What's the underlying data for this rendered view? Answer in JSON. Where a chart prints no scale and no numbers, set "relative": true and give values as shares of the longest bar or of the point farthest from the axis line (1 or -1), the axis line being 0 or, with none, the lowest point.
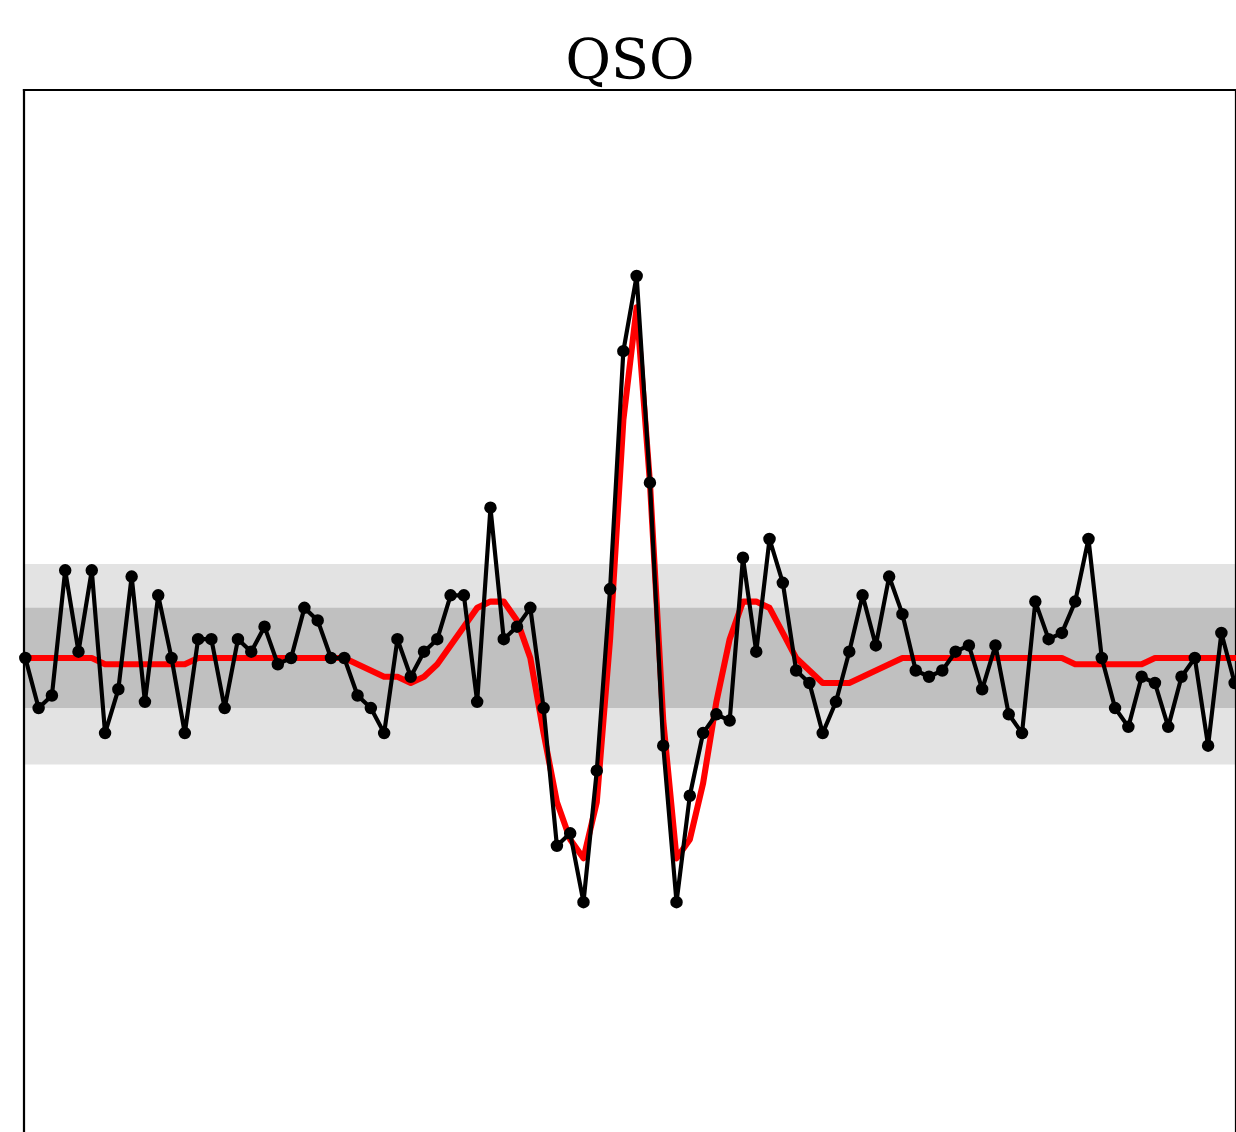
{
  "chart_data": {
    "type": "line",
    "title": "QSO",
    "relative": true,
    "categories": [
      null,
      null,
      null,
      null,
      null,
      null,
      null,
      null,
      null,
      null,
      null,
      null,
      null,
      null,
      null,
      null,
      null,
      null,
      null,
      null,
      null,
      null,
      null,
      null,
      null,
      null,
      null,
      null,
      null,
      null,
      null,
      null,
      null,
      null,
      null,
      null,
      null,
      null,
      null,
      null,
      null,
      null,
      null,
      null,
      null,
      null,
      null,
      null,
      null,
      null,
      null,
      null,
      null,
      null,
      null,
      null,
      null,
      null,
      null,
      null,
      null,
      null,
      null,
      null,
      null,
      null,
      null,
      null,
      null,
      null,
      null,
      null,
      null,
      null,
      null,
      null,
      null,
      null,
      null,
      null,
      null,
      null,
      null,
      null,
      null,
      null,
      null,
      null,
      null,
      null,
      null,
      null
    ],
    "bands": [
      {
        "axis": "y",
        "from": 0.22,
        "to": 0.54,
        "color": "#e3e3e3"
      },
      {
        "axis": "y",
        "from": 0.31,
        "to": 0.47,
        "color": "#c0c0c0"
      }
    ],
    "series": [
      {
        "color": "#000000",
        "marker": "circle",
        "line_style": "solid",
        "values": [
          0.39,
          0.31,
          0.33,
          0.53,
          0.4,
          0.53,
          0.27,
          0.34,
          0.52,
          0.32,
          0.49,
          0.39,
          0.27,
          0.42,
          0.42,
          0.31,
          0.42,
          0.4,
          0.44,
          0.38,
          0.39,
          0.47,
          0.45,
          0.39,
          0.39,
          0.33,
          0.31,
          0.27,
          0.42,
          0.36,
          0.4,
          0.42,
          0.49,
          0.49,
          0.32,
          0.63,
          0.42,
          0.44,
          0.47,
          0.31,
          0.09,
          0.11,
          0,
          0.21,
          0.5,
          0.88,
          1,
          0.67,
          0.25,
          0,
          0.17,
          0.27,
          0.3,
          0.29,
          0.55,
          0.4,
          0.58,
          0.51,
          0.37,
          0.35,
          0.27,
          0.32,
          0.4,
          0.49,
          0.41,
          0.52,
          0.46,
          0.37,
          0.36,
          0.37,
          0.4,
          0.41,
          0.34,
          0.41,
          0.3,
          0.27,
          0.48,
          0.42,
          0.43,
          0.48,
          0.58,
          0.39,
          0.31,
          0.28,
          0.36,
          0.35,
          0.28,
          0.36,
          0.39,
          0.25,
          0.43,
          0.35
        ]
      },
      {
        "color": "#ff0000",
        "marker": "none",
        "line_style": "solid",
        "values": [
          0.39,
          0.39,
          0.39,
          0.39,
          0.39,
          0.39,
          0.38,
          0.38,
          0.38,
          0.38,
          0.38,
          0.38,
          0.38,
          0.39,
          0.39,
          0.39,
          0.39,
          0.39,
          0.39,
          0.39,
          0.39,
          0.39,
          0.39,
          0.39,
          0.39,
          0.38,
          0.37,
          0.36,
          0.36,
          0.35,
          0.36,
          0.38,
          0.41,
          0.44,
          0.47,
          0.48,
          0.48,
          0.45,
          0.39,
          0.27,
          0.16,
          0.1,
          0.07,
          0.16,
          0.42,
          0.77,
          0.95,
          0.67,
          0.29,
          0.07,
          0.1,
          0.19,
          0.32,
          0.42,
          0.48,
          0.48,
          0.47,
          0.43,
          0.39,
          0.37,
          0.35,
          0.35,
          0.35,
          0.36,
          0.37,
          0.38,
          0.39,
          0.39,
          0.39,
          0.39,
          0.39,
          0.39,
          0.39,
          0.39,
          0.39,
          0.39,
          0.39,
          0.39,
          0.39,
          0.38,
          0.38,
          0.38,
          0.38,
          0.38,
          0.38,
          0.39,
          0.39,
          0.39,
          0.39,
          0.39,
          0.39,
          0.39
        ]
      }
    ]
  }
}
